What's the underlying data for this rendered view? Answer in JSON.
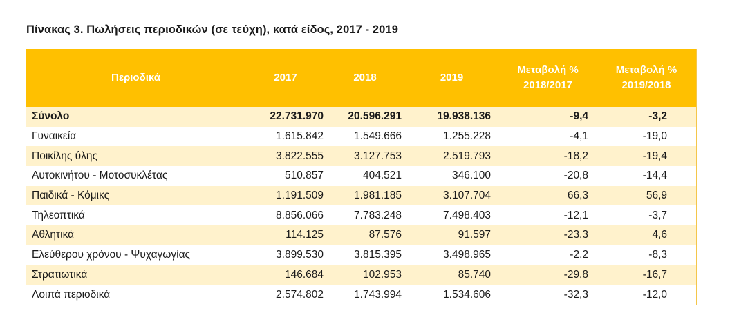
{
  "title": "Πίνακας 3. Πωλήσεις περιοδικών (σε τεύχη), κατά είδος, 2017 - 2019",
  "table": {
    "headers": {
      "label": "Περιοδικά",
      "y2017": "2017",
      "y2018": "2018",
      "y2019": "2019",
      "change1_line1": "Μεταβολή %",
      "change1_line2": "2018/2017",
      "change2_line1": "Μεταβολή %",
      "change2_line2": "2019/2018"
    },
    "colors": {
      "header_bg": "#ffc000",
      "header_text": "#ffffff",
      "alt_row_bg": "#fff2cc"
    },
    "rows": [
      {
        "name": "Σύνολο",
        "v2017": "22.731.970",
        "v2018": "20.596.291",
        "v2019": "19.938.136",
        "ch1": "-9,4",
        "ch2": "-3,2"
      },
      {
        "name": "Γυναικεία",
        "v2017": "1.615.842",
        "v2018": "1.549.666",
        "v2019": "1.255.228",
        "ch1": "-4,1",
        "ch2": "-19,0"
      },
      {
        "name": "Ποικίλης ύλης",
        "v2017": "3.822.555",
        "v2018": "3.127.753",
        "v2019": "2.519.793",
        "ch1": "-18,2",
        "ch2": "-19,4"
      },
      {
        "name": "Αυτοκινήτου - Μοτοσυκλέτας",
        "v2017": "510.857",
        "v2018": "404.521",
        "v2019": "346.100",
        "ch1": "-20,8",
        "ch2": "-14,4"
      },
      {
        "name": "Παιδικά - Κόμικς",
        "v2017": "1.191.509",
        "v2018": "1.981.185",
        "v2019": "3.107.704",
        "ch1": "66,3",
        "ch2": "56,9"
      },
      {
        "name": "Τηλεοπτικά",
        "v2017": "8.856.066",
        "v2018": "7.783.248",
        "v2019": "7.498.403",
        "ch1": "-12,1",
        "ch2": "-3,7"
      },
      {
        "name": "Αθλητικά",
        "v2017": "114.125",
        "v2018": "87.576",
        "v2019": "91.597",
        "ch1": "-23,3",
        "ch2": "4,6"
      },
      {
        "name": "Ελεύθερου χρόνου - Ψυχαγωγίας",
        "v2017": "3.899.530",
        "v2018": "3.815.395",
        "v2019": "3.498.965",
        "ch1": "-2,2",
        "ch2": "-8,3"
      },
      {
        "name": "Στρατιωτικά",
        "v2017": "146.684",
        "v2018": "102.953",
        "v2019": "85.740",
        "ch1": "-29,8",
        "ch2": "-16,7"
      },
      {
        "name": "Λοιπά περιοδικά",
        "v2017": "2.574.802",
        "v2018": "1.743.994",
        "v2019": "1.534.606",
        "ch1": "-32,3",
        "ch2": "-12,0"
      }
    ]
  }
}
